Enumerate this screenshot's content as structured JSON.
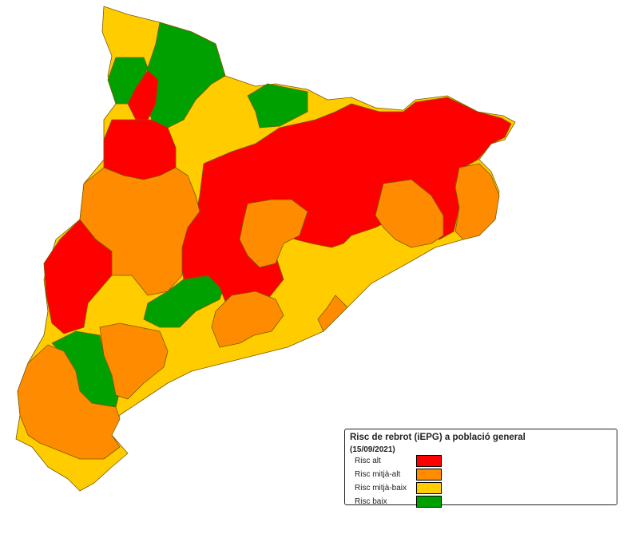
{
  "legend": {
    "title": "Risc de rebrot (iEPG) a població general",
    "date": "(15/09/2021)",
    "items": [
      {
        "label": "Risc alt",
        "color": "#ff0000"
      },
      {
        "label": "Risc mitjà-alt",
        "color": "#ff8c00"
      },
      {
        "label": "Risc mitjà-baix",
        "color": "#ffcc00"
      },
      {
        "label": "Risc baix",
        "color": "#00a000"
      }
    ]
  },
  "colors": {
    "alt": "#ff0000",
    "mitja_alt": "#ff8c00",
    "mitja_baix": "#ffcc00",
    "baix": "#00a000",
    "border": "#7a5a00"
  }
}
